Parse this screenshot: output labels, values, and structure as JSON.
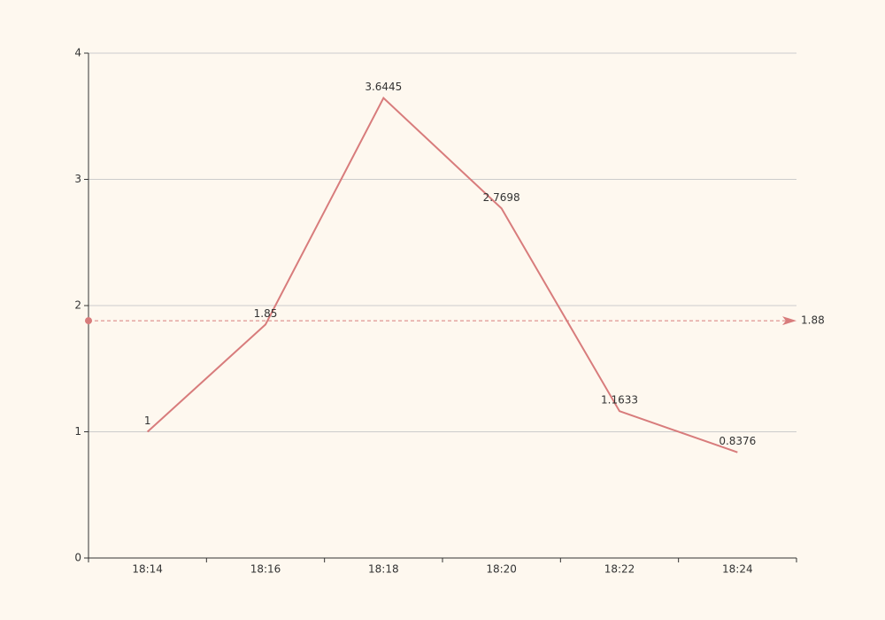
{
  "chart_data": {
    "type": "line",
    "categories": [
      "18:14",
      "18:16",
      "18:18",
      "18:20",
      "18:22",
      "18:24"
    ],
    "series": [
      {
        "color": "#d87c7c",
        "values": [
          1,
          1.85,
          3.6445,
          2.7698,
          1.1633,
          0.8376
        ]
      }
    ],
    "ylim": [
      0,
      4
    ],
    "yticks": [
      0,
      1,
      2,
      3,
      4
    ],
    "grid": true,
    "mark_line": {
      "value": 1.88
    }
  }
}
